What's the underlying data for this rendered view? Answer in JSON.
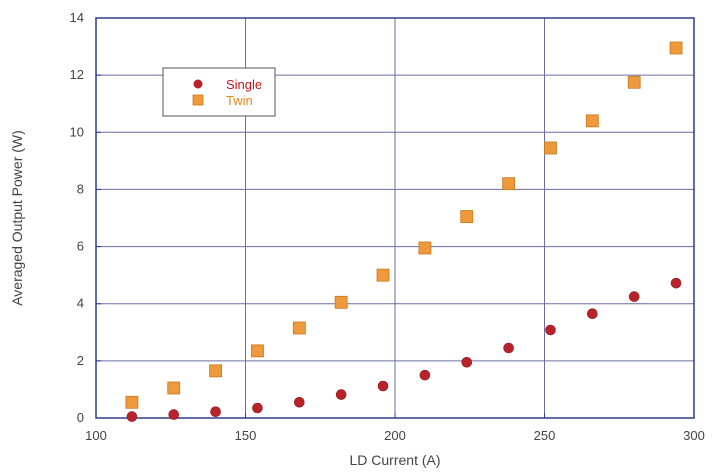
{
  "chart_data": {
    "type": "scatter",
    "xlabel": "LD Current (A)",
    "ylabel": "Averaged Output Power (W)",
    "xlim": [
      100,
      300
    ],
    "ylim": [
      0,
      14
    ],
    "xticks": [
      100,
      150,
      200,
      250,
      300
    ],
    "yticks": [
      0,
      2,
      4,
      6,
      8,
      10,
      12,
      14
    ],
    "grid": true,
    "legend": "top-left",
    "series": [
      {
        "name": "Single",
        "marker": "circle",
        "color": "#b8232b",
        "label_color": "#c4161c",
        "x": [
          112,
          126,
          140,
          154,
          168,
          182,
          196,
          210,
          224,
          238,
          252,
          266,
          280,
          294
        ],
        "y": [
          0.05,
          0.12,
          0.22,
          0.35,
          0.55,
          0.82,
          1.12,
          1.5,
          1.95,
          2.45,
          3.08,
          3.65,
          4.25,
          4.72
        ]
      },
      {
        "name": "Twin",
        "marker": "square",
        "color": "#ee9a3c",
        "label_color": "#e8861e",
        "x": [
          112,
          126,
          140,
          154,
          168,
          182,
          196,
          210,
          224,
          238,
          252,
          266,
          280,
          294
        ],
        "y": [
          0.55,
          1.05,
          1.65,
          2.35,
          3.15,
          4.05,
          5.0,
          5.95,
          7.05,
          8.2,
          9.45,
          10.4,
          11.75,
          12.95
        ]
      }
    ]
  }
}
